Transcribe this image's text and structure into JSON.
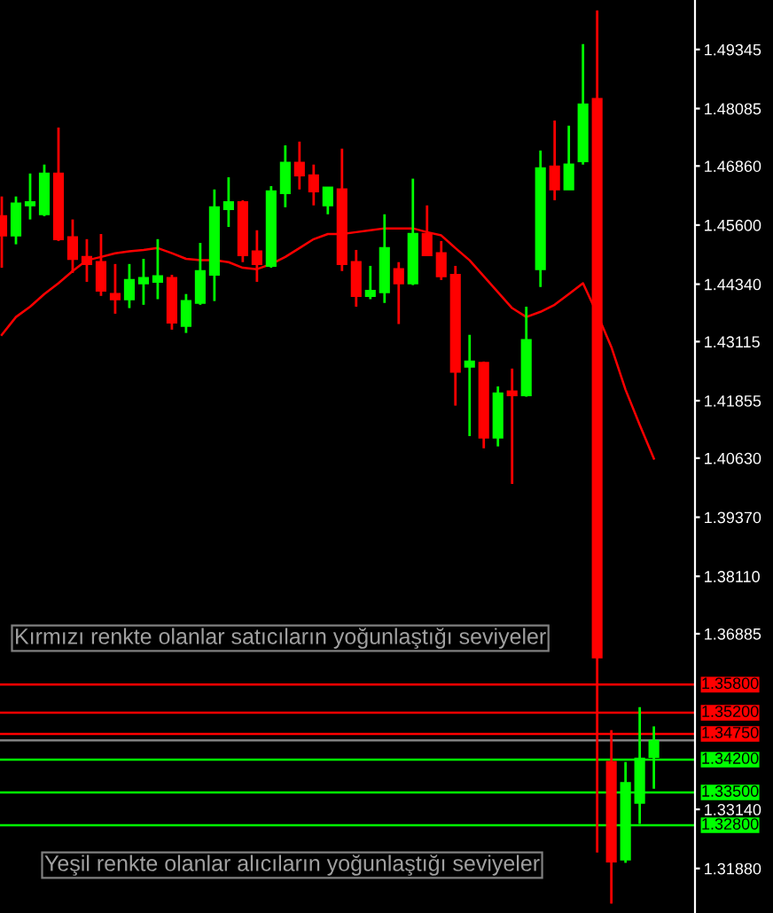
{
  "chart_data": {
    "type": "candlestick",
    "categories": [
      null,
      null,
      null,
      null,
      null,
      null,
      null,
      null,
      null,
      null,
      null,
      null,
      null,
      null,
      null,
      null,
      null,
      null,
      null,
      null,
      null,
      null,
      null,
      null,
      null,
      null,
      null,
      null,
      null,
      null,
      null,
      null,
      null,
      null,
      null,
      null,
      null,
      null,
      null,
      null,
      null,
      null,
      null,
      null,
      null,
      null,
      null,
      null,
      null
    ],
    "ohlc": [
      [
        1.4579,
        1.4621,
        1.4469,
        1.4538
      ],
      [
        1.4538,
        1.4621,
        1.4519,
        1.4606
      ],
      [
        1.4602,
        1.467,
        1.4572,
        1.4609
      ],
      [
        1.4583,
        1.4689,
        1.4579,
        1.467
      ],
      [
        1.467,
        1.4768,
        1.4526,
        1.453
      ],
      [
        1.4534,
        1.4572,
        1.4458,
        1.4488
      ],
      [
        1.4492,
        1.453,
        1.4439,
        1.4477
      ],
      [
        1.4481,
        1.4541,
        1.4409,
        1.442
      ],
      [
        1.4413,
        1.4477,
        1.4371,
        1.4402
      ],
      [
        1.4402,
        1.4477,
        1.4383,
        1.4443
      ],
      [
        1.4436,
        1.4488,
        1.439,
        1.4447
      ],
      [
        1.4439,
        1.453,
        1.4402,
        1.4451
      ],
      [
        1.4447,
        1.4454,
        1.4337,
        1.4352
      ],
      [
        1.4345,
        1.4413,
        1.433,
        1.4398
      ],
      [
        1.4394,
        1.4522,
        1.439,
        1.4462
      ],
      [
        1.4454,
        1.4636,
        1.4398,
        1.4598
      ],
      [
        1.4594,
        1.4662,
        1.4556,
        1.4609
      ],
      [
        1.4609,
        1.4613,
        1.4481,
        1.4496
      ],
      [
        1.4504,
        1.4549,
        1.4439,
        1.4477
      ],
      [
        1.4473,
        1.4643,
        1.4469,
        1.4632
      ],
      [
        1.4628,
        1.473,
        1.4598,
        1.4693
      ],
      [
        1.4693,
        1.4738,
        1.4636,
        1.4666
      ],
      [
        1.4666,
        1.4689,
        1.4602,
        1.4632
      ],
      [
        1.4602,
        1.464,
        1.4583,
        1.464
      ],
      [
        1.4636,
        1.4723,
        1.4462,
        1.4477
      ],
      [
        1.4481,
        1.4507,
        1.4386,
        1.4409
      ],
      [
        1.4409,
        1.4473,
        1.4402,
        1.442
      ],
      [
        1.4417,
        1.4583,
        1.4394,
        1.4511
      ],
      [
        1.4466,
        1.4481,
        1.4349,
        1.4436
      ],
      [
        1.4436,
        1.4659,
        1.4432,
        1.4541
      ],
      [
        1.4541,
        1.4602,
        1.4496,
        1.4496
      ],
      [
        1.45,
        1.4526,
        1.4443,
        1.4451
      ],
      [
        1.4454,
        1.4473,
        1.4175,
        1.4247
      ],
      [
        1.4258,
        1.4326,
        1.411,
        1.4269
      ],
      [
        1.4266,
        1.4269,
        1.4084,
        1.4107
      ],
      [
        1.4107,
        1.4216,
        1.4088,
        1.4201
      ],
      [
        1.4205,
        1.4254,
        1.4008,
        1.4197
      ],
      [
        1.4197,
        1.4386,
        1.4194,
        1.4315
      ],
      [
        1.4466,
        1.4719,
        1.4428,
        1.4681
      ],
      [
        1.4685,
        1.4783,
        1.4613,
        1.4636
      ],
      [
        1.4636,
        1.4772,
        1.4636,
        1.4689
      ],
      [
        1.4696,
        1.4946,
        1.4689,
        1.4817
      ],
      [
        1.4829,
        1.5018,
        1.3222,
        1.3638
      ],
      [
        1.3415,
        1.3483,
        1.3113,
        1.3203
      ],
      [
        1.3207,
        1.3415,
        1.32,
        1.337
      ],
      [
        1.3328,
        1.3532,
        1.3283,
        1.3422
      ],
      [
        1.3426,
        1.3491,
        1.3358,
        1.346
      ],
      null,
      null
    ],
    "colors": [
      "#ff0000",
      "#00ff00",
      "#00ff00",
      "#00ff00",
      "#ff0000",
      "#ff0000",
      "#ff0000",
      "#ff0000",
      "#ff0000",
      "#00ff00",
      "#00ff00",
      "#00ff00",
      "#ff0000",
      "#00ff00",
      "#00ff00",
      "#00ff00",
      "#00ff00",
      "#ff0000",
      "#ff0000",
      "#00ff00",
      "#00ff00",
      "#ff0000",
      "#ff0000",
      "#00ff00",
      "#ff0000",
      "#ff0000",
      "#00ff00",
      "#00ff00",
      "#ff0000",
      "#00ff00",
      "#ff0000",
      "#ff0000",
      "#ff0000",
      "#00ff00",
      "#ff0000",
      "#00ff00",
      "#ff0000",
      "#00ff00",
      "#00ff00",
      "#ff0000",
      "#00ff00",
      "#00ff00",
      "#ff0000",
      "#ff0000",
      "#00ff00",
      "#00ff00",
      "#00ff00",
      null,
      null
    ],
    "series": [
      {
        "type": "line",
        "color": "#ff0000",
        "values": [
          1.4326,
          1.4364,
          1.4386,
          1.4413,
          1.4436,
          1.4462,
          1.4485,
          1.4492,
          1.45,
          1.4504,
          1.4507,
          1.4511,
          1.45,
          1.4488,
          1.4485,
          1.4485,
          1.4481,
          1.4469,
          1.4466,
          1.4477,
          1.4492,
          1.4511,
          1.453,
          1.4541,
          1.4541,
          1.4545,
          1.4549,
          1.4553,
          1.4553,
          1.4553,
          1.4545,
          1.4538,
          1.4511,
          1.4485,
          1.4451,
          1.4417,
          1.4383,
          1.4364,
          1.4375,
          1.439,
          1.4413,
          1.4436,
          1.4371,
          1.43,
          1.4209,
          1.4134,
          1.4062,
          null,
          null
        ]
      }
    ],
    "ylim": [
      1.3093,
      1.504
    ],
    "yticks": [
      {
        "value": 1.49345,
        "label": "1.49345"
      },
      {
        "value": 1.48085,
        "label": "1.48085"
      },
      {
        "value": 1.4686,
        "label": "1.46860"
      },
      {
        "value": 1.456,
        "label": "1.45600"
      },
      {
        "value": 1.4434,
        "label": "1.44340"
      },
      {
        "value": 1.43115,
        "label": "1.43115"
      },
      {
        "value": 1.41855,
        "label": "1.41855"
      },
      {
        "value": 1.4063,
        "label": "1.40630"
      },
      {
        "value": 1.3937,
        "label": "1.39370"
      },
      {
        "value": 1.3811,
        "label": "1.38110"
      },
      {
        "value": 1.36885,
        "label": "1.36885"
      },
      {
        "value": 1.3314,
        "label": "1.33140"
      },
      {
        "value": 1.3188,
        "label": "1.31880"
      }
    ],
    "tick_labels": "y",
    "ref_lines": [
      {
        "axis": "y",
        "value": 1.358,
        "label": "1.35800",
        "color": "#ff0000"
      },
      {
        "axis": "y",
        "value": 1.352,
        "label": "1.35200",
        "color": "#ff0000"
      },
      {
        "axis": "y",
        "value": 1.3475,
        "label": "1.34750",
        "color": "#ff0000"
      },
      {
        "axis": "y",
        "value": 1.3461,
        "label": null,
        "color": "#808080"
      },
      {
        "axis": "y",
        "value": 1.342,
        "label": "1.34200",
        "color": "#00ff00"
      },
      {
        "axis": "y",
        "value": 1.335,
        "label": "1.33500",
        "color": "#00ff00"
      },
      {
        "axis": "y",
        "value": 1.328,
        "label": "1.32800",
        "color": "#00ff00"
      }
    ],
    "annotations": [
      "Kırmızı renkte olanlar satıcıların yoğunlaştığı seviyeler",
      "Yeşil renkte olanlar alıcıların yoğunlaştığı seviyeler"
    ],
    "grid": false,
    "legend": false
  }
}
